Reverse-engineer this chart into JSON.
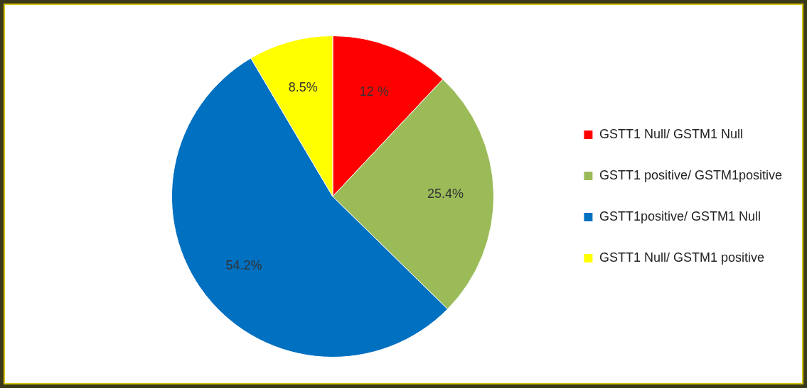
{
  "chart_data": {
    "type": "pie",
    "categories": [
      "GSTT1 Null/ GSTM1 Null",
      "GSTT1 positive/ GSTM1positive",
      "GSTT1positive/ GSTM1 Null",
      "GSTT1 Null/ GSTM1 positive"
    ],
    "values": [
      12,
      25.4,
      54.2,
      8.5
    ],
    "colors": [
      "#ff0000",
      "#9bbb59",
      "#0070c0",
      "#ffff00"
    ],
    "value_labels": [
      "12 %",
      "25.4%",
      "54.2%",
      "8.5%"
    ],
    "legend": "right"
  }
}
